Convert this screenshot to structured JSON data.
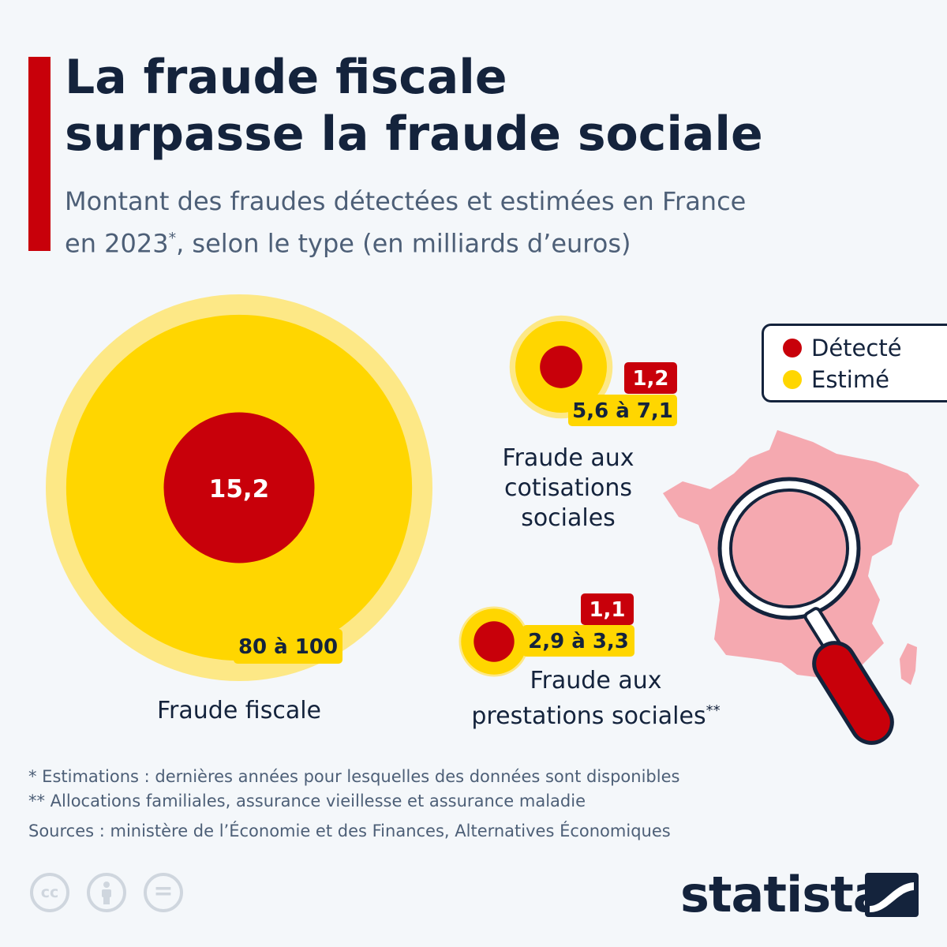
{
  "title_line1": "La fraude fiscale",
  "title_line2": "surpasse la fraude sociale",
  "subtitle_line1": "Montant des fraudes détectées et estimées en France",
  "subtitle_line2_a": "en 2023",
  "subtitle_marker": "*",
  "subtitle_line2_b": ", selon le type (en milliards d’euros)",
  "legend": [
    {
      "label": "Détecté",
      "color": "#c8000a"
    },
    {
      "label": "Estimé",
      "color": "#ffd600"
    }
  ],
  "chart_data": {
    "type": "bubble",
    "unit": "milliards d’euros",
    "series": [
      {
        "name": "Détecté",
        "color": "#c8000a"
      },
      {
        "name": "Estimé",
        "color": "#ffd600"
      }
    ],
    "categories": [
      {
        "label_lines": [
          "Fraude fiscale"
        ],
        "marker": "",
        "detected": 15.2,
        "detected_label": "15,2",
        "estimated_min": 80,
        "estimated_max": 100,
        "estimated_label": "80 à 100"
      },
      {
        "label_lines": [
          "Fraude aux",
          "cotisations",
          "sociales"
        ],
        "marker": "",
        "detected": 1.2,
        "detected_label": "1,2",
        "estimated_min": 5.6,
        "estimated_max": 7.1,
        "estimated_label": "5,6 à 7,1"
      },
      {
        "label_lines": [
          "Fraude aux",
          "prestations sociales"
        ],
        "marker": "**",
        "detected": 1.1,
        "detected_label": "1,1",
        "estimated_min": 2.9,
        "estimated_max": 3.3,
        "estimated_label": "2,9 à 3,3"
      }
    ],
    "colors": {
      "detected": "#c8000a",
      "estimated": "#ffd600",
      "estimated_range": "#fde886",
      "label_text": "#14233c"
    }
  },
  "notes": [
    "*   Estimations : dernières années pour lesquelles des données sont disponibles",
    "** Allocations familiales, assurance vieillesse et assurance maladie",
    "Sources : ministère de l’Économie et des Finances, Alternatives Économiques"
  ],
  "license_icons": [
    "cc-icon",
    "attribution-icon",
    "no-derivatives-icon"
  ],
  "license_glyphs": [
    "cc",
    "="
  ],
  "brand": "statista",
  "illustration": {
    "map_color": "#f5a9b0",
    "magnifier_handle_color": "#c8000a"
  }
}
